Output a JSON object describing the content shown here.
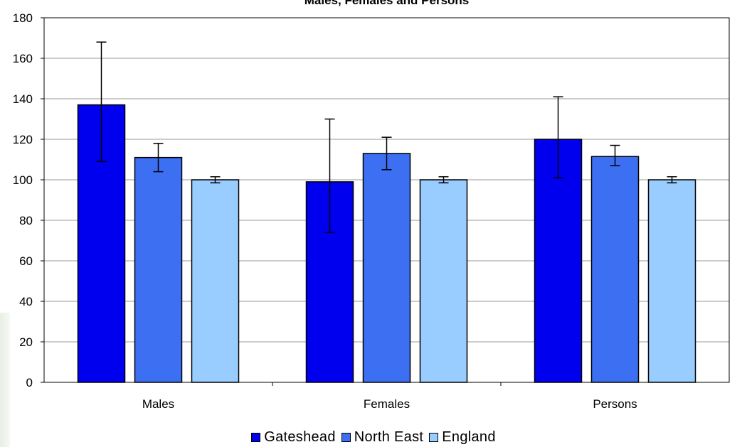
{
  "chart_data": {
    "type": "bar",
    "title": "Males, Females and Persons",
    "categories": [
      "Males",
      "Females",
      "Persons"
    ],
    "ylim": [
      0,
      180
    ],
    "yticks": [
      0,
      20,
      40,
      60,
      80,
      100,
      120,
      140,
      160,
      180
    ],
    "grid": true,
    "legend_position": "bottom",
    "series": [
      {
        "name": "Gateshead",
        "color": "#0000ee",
        "values": [
          137,
          99,
          120
        ],
        "err_low": [
          109,
          74,
          101
        ],
        "err_high": [
          168,
          130,
          141
        ]
      },
      {
        "name": "North East",
        "color": "#3d6ff2",
        "values": [
          111,
          113,
          111.5
        ],
        "err_low": [
          104,
          105,
          107
        ],
        "err_high": [
          118,
          121,
          117
        ]
      },
      {
        "name": "England",
        "color": "#99ccff",
        "values": [
          100,
          100,
          100
        ],
        "err_low": [
          98.5,
          98.5,
          98.5
        ],
        "err_high": [
          101.5,
          101.5,
          101.5
        ]
      }
    ]
  }
}
